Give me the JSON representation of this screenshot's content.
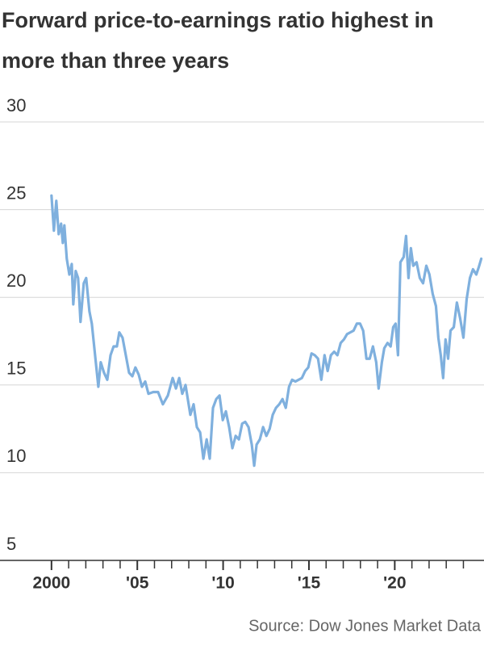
{
  "chart_data": {
    "type": "line",
    "title": "Forward price-to-earnings ratio highest in more than three years",
    "source": "Source: Dow Jones Market Data",
    "color": "#7fb0de",
    "grid": true,
    "xlim": [
      1997,
      2025.2
    ],
    "ylim": [
      5,
      30
    ],
    "yticks": [
      5,
      10,
      15,
      20,
      25,
      30
    ],
    "xticks": [
      {
        "value": 2000,
        "label": "2000"
      },
      {
        "value": 2005,
        "label": "'05"
      },
      {
        "value": 2010,
        "label": "'10"
      },
      {
        "value": 2015,
        "label": "'15"
      },
      {
        "value": 2020,
        "label": "'20"
      }
    ],
    "xminorticks": [
      2001,
      2002,
      2003,
      2004,
      2006,
      2007,
      2008,
      2009,
      2011,
      2012,
      2013,
      2014,
      2016,
      2017,
      2018,
      2019,
      2021,
      2022,
      2023,
      2024
    ],
    "x": [
      2000,
      2000.14,
      2000.28,
      2000.42,
      2000.56,
      2000.66,
      2000.75,
      2000.89,
      2001.04,
      2001.18,
      2001.27,
      2001.41,
      2001.55,
      2001.69,
      2001.88,
      2002.02,
      2002.21,
      2002.35,
      2002.54,
      2002.73,
      2002.87,
      2003.06,
      2003.25,
      2003.44,
      2003.62,
      2003.81,
      2003.95,
      2004.14,
      2004.33,
      2004.52,
      2004.71,
      2004.89,
      2005.08,
      2005.27,
      2005.46,
      2005.65,
      2005.93,
      2006.21,
      2006.49,
      2006.78,
      2007.06,
      2007.25,
      2007.44,
      2007.62,
      2007.81,
      2008.09,
      2008.28,
      2008.47,
      2008.66,
      2008.85,
      2009.04,
      2009.22,
      2009.41,
      2009.6,
      2009.79,
      2009.98,
      2010.16,
      2010.35,
      2010.54,
      2010.73,
      2010.92,
      2011.11,
      2011.29,
      2011.48,
      2011.67,
      2011.81,
      2011.95,
      2012.14,
      2012.33,
      2012.52,
      2012.71,
      2012.89,
      2013.08,
      2013.27,
      2013.46,
      2013.65,
      2013.84,
      2014.02,
      2014.21,
      2014.4,
      2014.59,
      2014.78,
      2014.96,
      2015.15,
      2015.34,
      2015.53,
      2015.72,
      2015.91,
      2016.09,
      2016.28,
      2016.47,
      2016.66,
      2016.85,
      2017.04,
      2017.22,
      2017.41,
      2017.6,
      2017.79,
      2017.98,
      2018.16,
      2018.35,
      2018.54,
      2018.73,
      2018.92,
      2019.06,
      2019.25,
      2019.39,
      2019.58,
      2019.76,
      2019.91,
      2020.05,
      2020.19,
      2020.33,
      2020.52,
      2020.66,
      2020.8,
      2020.94,
      2021.08,
      2021.27,
      2021.46,
      2021.65,
      2021.84,
      2022.02,
      2022.21,
      2022.4,
      2022.54,
      2022.68,
      2022.82,
      2022.96,
      2023.11,
      2023.25,
      2023.44,
      2023.62,
      2023.81,
      2024.0,
      2024.19,
      2024.38,
      2024.56,
      2024.75,
      2024.89,
      2025.04
    ],
    "values": [
      25.8,
      23.8,
      25.5,
      23.6,
      24.2,
      23.1,
      24.1,
      22.2,
      21.3,
      21.9,
      19.6,
      21.5,
      21.1,
      18.6,
      20.8,
      21.1,
      19.2,
      18.5,
      16.7,
      14.9,
      16.3,
      15.7,
      15.3,
      16.7,
      17.2,
      17.2,
      18.0,
      17.7,
      16.7,
      15.7,
      15.5,
      16.0,
      15.6,
      14.9,
      15.2,
      14.5,
      14.6,
      14.6,
      13.9,
      14.4,
      15.4,
      14.8,
      15.4,
      14.5,
      15.0,
      13.3,
      13.9,
      12.6,
      12.3,
      10.8,
      11.9,
      10.8,
      13.7,
      14.2,
      14.4,
      13.0,
      13.5,
      12.6,
      11.4,
      12.1,
      11.9,
      12.8,
      12.9,
      12.6,
      11.6,
      10.4,
      11.6,
      11.9,
      12.6,
      12.1,
      12.5,
      13.3,
      13.7,
      13.9,
      14.2,
      13.7,
      14.9,
      15.3,
      15.2,
      15.3,
      15.4,
      15.8,
      16.0,
      16.8,
      16.7,
      16.5,
      15.3,
      16.7,
      15.8,
      16.7,
      16.9,
      16.7,
      17.4,
      17.6,
      17.9,
      18.0,
      18.1,
      18.5,
      18.5,
      18.1,
      16.5,
      16.5,
      17.2,
      16.3,
      14.8,
      16.3,
      17.1,
      17.4,
      17.2,
      18.3,
      18.5,
      16.7,
      22.0,
      22.3,
      23.5,
      21.1,
      22.8,
      21.8,
      22.0,
      21.1,
      20.8,
      21.8,
      21.3,
      20.2,
      19.5,
      17.7,
      16.7,
      15.4,
      17.6,
      16.5,
      18.1,
      18.3,
      19.7,
      18.8,
      17.7,
      19.9,
      21.1,
      21.6,
      21.3,
      21.7,
      22.2
    ]
  }
}
